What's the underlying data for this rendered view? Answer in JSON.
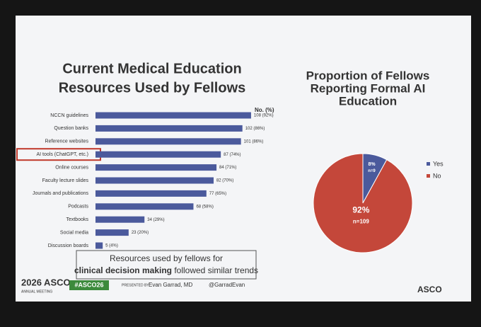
{
  "chart_data": [
    {
      "type": "bar",
      "orientation": "horizontal",
      "title": [
        "Current Medical Education",
        "Resources Used by Fellows"
      ],
      "value_header": "No. (%)",
      "categories": [
        "NCCN guidelines",
        "Question banks",
        "Reference websites",
        "AI tools (ChatGPT, etc.)",
        "Online courses",
        "Faculty lecture slides",
        "Journals and publications",
        "Podcasts",
        "Textbooks",
        "Social media",
        "Discussion boards"
      ],
      "values": [
        108,
        102,
        101,
        87,
        84,
        82,
        77,
        68,
        34,
        23,
        5
      ],
      "value_labels": [
        "108 (92%)",
        "102 (86%)",
        "101 (86%)",
        "87 (74%)",
        "84 (71%)",
        "82 (70%)",
        "77 (65%)",
        "68 (58%)",
        "34 (29%)",
        "23 (20%)",
        "5 (4%)"
      ],
      "color": "#4b5a9c",
      "xlim": [
        0,
        110
      ],
      "highlight_index": 3,
      "highlight_color": "#c0392b"
    },
    {
      "type": "pie",
      "title": [
        "Proportion of Fellows",
        "Reporting Formal AI",
        "Education"
      ],
      "categories": [
        "Yes",
        "No"
      ],
      "values": [
        8,
        92
      ],
      "value_labels": [
        "8%",
        "92%"
      ],
      "count_labels": [
        "n=9",
        "n=109"
      ],
      "colors": [
        "#4b5a9c",
        "#c4473a"
      ]
    }
  ],
  "slide": {
    "callout": [
      "Resources used by fellows for",
      "clinical decision making",
      "followed similar trends"
    ],
    "footer": {
      "meeting": "2026 ASCO",
      "meeting_sub": "ANNUAL MEETING",
      "hashtag": "#ASCO26",
      "presenter_label": "PRESENTED BY:",
      "presenter": "Evan Garrad, MD",
      "handle": "@GarradEvan",
      "org": "ASCO"
    }
  }
}
